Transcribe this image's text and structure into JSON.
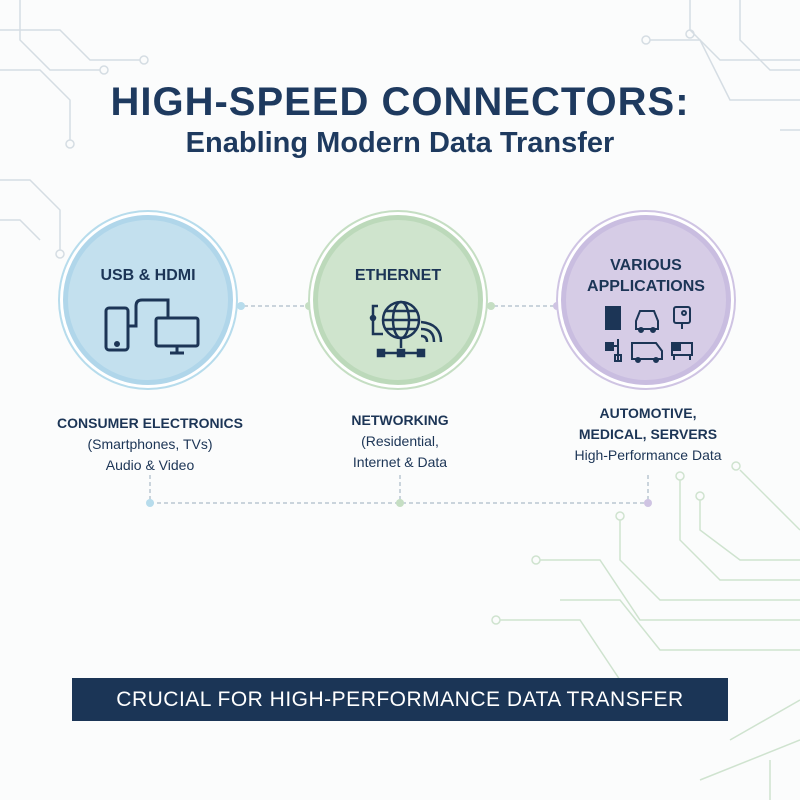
{
  "title": {
    "line1": "HIGH-SPEED CONNECTORS:",
    "line2": "Enabling Modern Data Transfer"
  },
  "colors": {
    "navy": "#1e3a5f",
    "blue": "#c3e0ee",
    "green": "#cfe4cd",
    "purple": "#d6cce6",
    "banner": "#1b3556"
  },
  "nodes": [
    {
      "title": "USB & HDMI",
      "icons": [
        "smartphone-icon",
        "monitor-icon"
      ],
      "label_heading": "CONSUMER ELECTRONICS",
      "label_lines": [
        "(Smartphones, TVs)",
        "Audio & Video"
      ]
    },
    {
      "title": "ETHERNET",
      "icons": [
        "globe-network-icon",
        "wifi-icon"
      ],
      "label_heading": "NETWORKING",
      "label_lines": [
        "(Residential,",
        "Internet & Data"
      ]
    },
    {
      "title_lines": [
        "VARIOUS",
        "APPLICATIONS"
      ],
      "icons": [
        "server-icon",
        "car-icon",
        "medical-device-icon",
        "network-diagram-icon",
        "van-icon",
        "equipment-icon"
      ],
      "label_heading_lines": [
        "AUTOMOTIVE,",
        "MEDICAL, SERVERS"
      ],
      "label_lines": [
        "High-Performance Data"
      ]
    }
  ],
  "banner": {
    "text": "CRUCIAL FOR HIGH-PERFORMANCE DATA TRANSFER"
  }
}
